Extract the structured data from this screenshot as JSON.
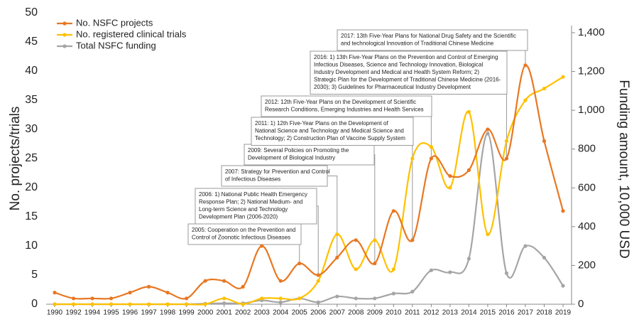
{
  "chart_data": {
    "type": "line",
    "categories": [
      "1990",
      "1992",
      "1994",
      "1995",
      "1996",
      "1997",
      "1998",
      "1999",
      "2000",
      "2001",
      "2002",
      "2003",
      "2004",
      "2005",
      "2006",
      "2007",
      "2008",
      "2009",
      "2010",
      "2011",
      "2012",
      "2013",
      "2014",
      "2015",
      "2016",
      "2017",
      "2018",
      "2019"
    ],
    "series": [
      {
        "name": "No. NSFC projects",
        "color": "#e87722",
        "values": [
          2,
          1,
          1,
          1,
          2,
          3,
          2,
          1,
          4,
          4,
          3,
          10,
          4,
          7,
          5,
          8,
          11,
          7,
          16,
          11,
          25,
          22,
          23,
          30,
          25,
          41,
          28,
          16
        ]
      },
      {
        "name": "No. registered clinical trials",
        "color": "#ffc000",
        "values": [
          0,
          0,
          0,
          0,
          0,
          0,
          0,
          0,
          0,
          1,
          0,
          1,
          1,
          1,
          4,
          12,
          6,
          11,
          6,
          25,
          27,
          20,
          33,
          12,
          28,
          35,
          37,
          39
        ]
      },
      {
        "name": "Total NSFC funding",
        "color": "#a5a5a5",
        "axis": "y2",
        "values": [
          0,
          0,
          0,
          0,
          0,
          0,
          0,
          0,
          3,
          5,
          5,
          20,
          10,
          30,
          10,
          40,
          30,
          30,
          55,
          65,
          175,
          165,
          235,
          880,
          160,
          300,
          240,
          95
        ]
      }
    ],
    "ylabel": "No. projects/trials",
    "y2label": "Funding amount, 10,000 USD",
    "ylim": [
      0,
      50
    ],
    "yticks": [
      0,
      5,
      10,
      15,
      20,
      25,
      30,
      35,
      40,
      45,
      50
    ],
    "y2lim": [
      0,
      1400
    ],
    "y2ticks": [
      0,
      200,
      400,
      600,
      800,
      {
        "value": 1000,
        "label": "1,000"
      },
      {
        "value": 1200,
        "label": "1,200"
      },
      {
        "value": 1400,
        "label": "1,400"
      }
    ],
    "legend": "top-left",
    "annotations": [
      {
        "lines": [
          "2005: Cooperation on the Prevention and",
          "Control of Zoonotic Infectious Diseases"
        ]
      },
      {
        "lines": [
          "2006: 1) National Public Health Emergency",
          "Response Plan; 2) National Medium- and",
          "Long-term Science and Technology",
          "Development Plan (2006-2020)"
        ]
      },
      {
        "lines": [
          "2007: Strategy for Prevention and Control",
          "of Infectious Diseases"
        ]
      },
      {
        "lines": [
          "2009: Several Policies on Promoting the",
          "Development of Biological Industry"
        ]
      },
      {
        "lines": [
          "2011: 1) 12th Five-Year Plans on the Development of",
          "National Science and Technology and Medical Science and",
          "Technology; 2) Construction Plan of Vaccine Supply System"
        ]
      },
      {
        "lines": [
          "2012: 12th Five-Year Plans on the Development of Scientific",
          "Research Conditions, Emerging Industries and Health Services"
        ]
      },
      {
        "lines": [
          "2016: 1) 13th Five-Year Plans on the Prevention and Control of Emerging",
          "Infectious Diseases,  Science and Technology Innovation, Biological",
          "Industry Development and Medical and Health System Reform; 2)",
          "Strategic Plan for the Development of Traditional Chinese Medicine (2016-",
          "2030); 3) Guidelines for Pharmaceutical Industry Development"
        ]
      },
      {
        "lines": [
          "2017: 13th Five-Year Plans for National Drug Safety and the Scientific",
          "and technological Innovation of Traditional Chinese Medicine"
        ]
      }
    ]
  }
}
